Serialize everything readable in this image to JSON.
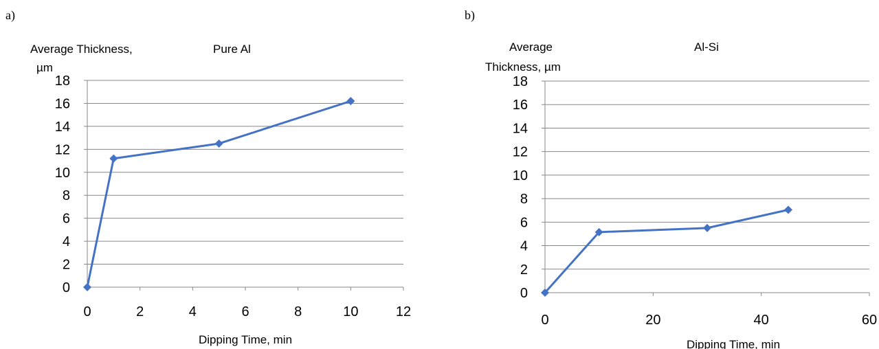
{
  "panels": [
    {
      "label": "a)",
      "chart_data": {
        "type": "line",
        "title": "Pure Al",
        "ylabel_lines": [
          "Average Thickness,",
          "µm"
        ],
        "xlabel": "Dipping Time, min",
        "xlim": [
          0,
          12
        ],
        "ylim": [
          0,
          18
        ],
        "x_ticks": [
          0,
          2,
          4,
          6,
          8,
          10,
          12
        ],
        "y_ticks": [
          0,
          2,
          4,
          6,
          8,
          10,
          12,
          14,
          16,
          18
        ],
        "grid": true,
        "series": [
          {
            "color": "#4472C4",
            "x": [
              0,
              1,
              5,
              10
            ],
            "y": [
              0,
              11.2,
              12.5,
              16.2
            ]
          }
        ]
      }
    },
    {
      "label": "b)",
      "chart_data": {
        "type": "line",
        "title": "Al-Si",
        "ylabel_lines": [
          "Average",
          "Thickness, µm"
        ],
        "xlabel": "Dipping Time, min",
        "xlim": [
          0,
          60
        ],
        "ylim": [
          0,
          18
        ],
        "x_ticks": [
          0,
          20,
          40,
          60
        ],
        "y_ticks": [
          0,
          2,
          4,
          6,
          8,
          10,
          12,
          14,
          16,
          18
        ],
        "grid": true,
        "series": [
          {
            "color": "#4472C4",
            "x": [
              0,
              10,
              30,
              45
            ],
            "y": [
              0,
              5.15,
              5.5,
              7.05
            ]
          }
        ]
      }
    }
  ]
}
